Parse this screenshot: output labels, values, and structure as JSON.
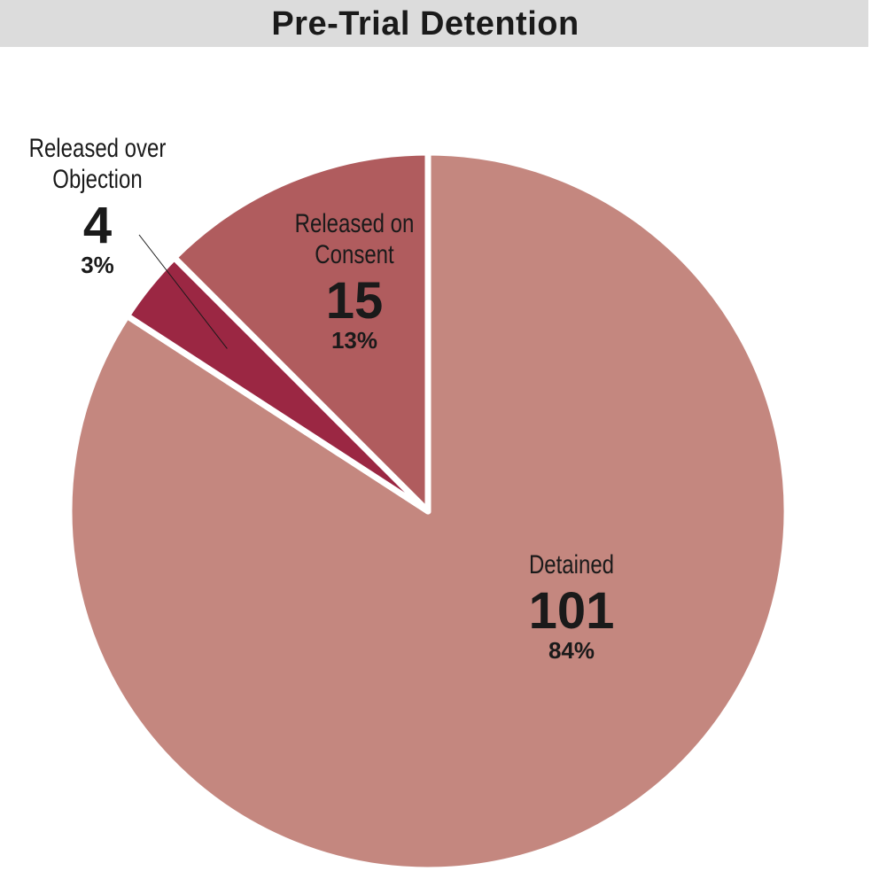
{
  "chart_data": {
    "type": "pie",
    "title": "Pre-Trial Detention",
    "categories": [
      "Detained",
      "Released over Objection",
      "Released on Consent"
    ],
    "values": [
      101,
      4,
      15
    ],
    "value_labels": [
      "84%",
      "3%",
      "13%"
    ],
    "colors": [
      "#c4877f",
      "#9b2743",
      "#b05c5e"
    ]
  }
}
